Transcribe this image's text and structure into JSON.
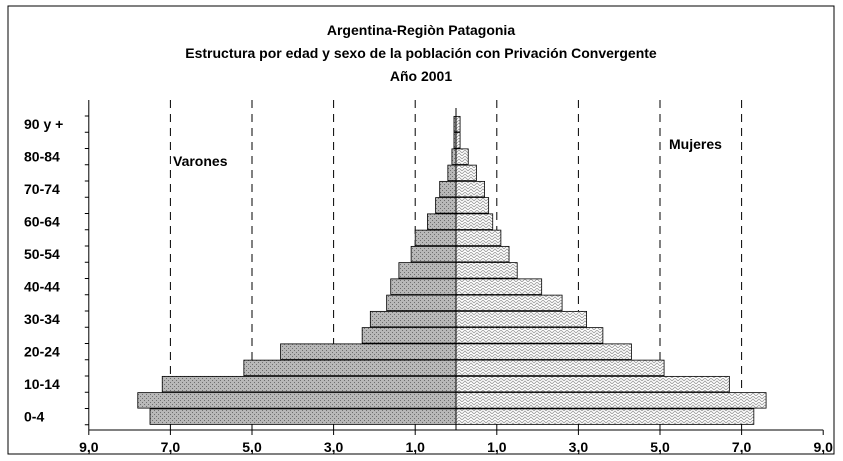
{
  "chart_data": {
    "type": "bar",
    "orientation": "horizontal-population-pyramid",
    "title": [
      "Argentina-Regiòn Patagonia",
      "Estructura por edad y sexo de la población con Privación Convergente",
      "Año 2001"
    ],
    "categories": [
      "0-4",
      "5-9",
      "10-14",
      "15-19",
      "20-24",
      "25-29",
      "30-34",
      "35-39",
      "40-44",
      "45-49",
      "50-54",
      "55-59",
      "60-64",
      "65-69",
      "70-74",
      "75-79",
      "80-84",
      "85-89",
      "90 y +"
    ],
    "y_tick_labels": [
      "0-4",
      "10-14",
      "20-24",
      "30-34",
      "40-44",
      "50-54",
      "60-64",
      "70-74",
      "80-84",
      "90 y +"
    ],
    "x_tick_labels": [
      "9,0",
      "7,0",
      "5,0",
      "3,0",
      "1,0",
      "1,0",
      "3,0",
      "5,0",
      "7,0",
      "9,0"
    ],
    "xlim": [
      -9,
      9
    ],
    "grid": "dashed-vertical",
    "series": [
      {
        "name": "Varones",
        "side": "left",
        "values": [
          7.5,
          7.8,
          7.2,
          5.2,
          4.3,
          2.3,
          2.1,
          1.7,
          1.6,
          1.4,
          1.1,
          1.0,
          0.7,
          0.5,
          0.4,
          0.2,
          0.1,
          0.05,
          0.05
        ]
      },
      {
        "name": "Mujeres",
        "side": "right",
        "values": [
          7.3,
          7.6,
          6.7,
          5.1,
          4.3,
          3.6,
          3.2,
          2.6,
          2.1,
          1.5,
          1.3,
          1.1,
          0.9,
          0.8,
          0.7,
          0.5,
          0.3,
          0.1,
          0.1
        ]
      }
    ],
    "colors": {
      "left_fill": "#b4b4b4",
      "right_fill": "#ffffff",
      "bar_stroke": "#000000",
      "grid": "#000000"
    }
  }
}
